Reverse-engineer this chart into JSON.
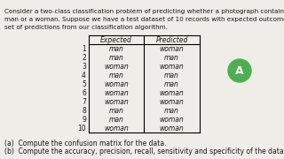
{
  "title_line1": "Consider a two-class classification problem of predicting whether a photograph contains",
  "title_line2": "man or a woman. Suppose we have a test dataset of 10 records with expected outcomes and",
  "title_line3": "set of predictions from our classification algorithm.",
  "col_headers": [
    "",
    "Expected",
    "Predicted"
  ],
  "rows": [
    [
      "1",
      "man",
      "woman"
    ],
    [
      "2",
      "man",
      "man"
    ],
    [
      "3",
      "woman",
      "woman"
    ],
    [
      "4",
      "man",
      "man"
    ],
    [
      "5",
      "woman",
      "man"
    ],
    [
      "6",
      "woman",
      "woman"
    ],
    [
      "7",
      "woman",
      "woman"
    ],
    [
      "8",
      "man",
      "man"
    ],
    [
      "9",
      "man",
      "woman"
    ],
    [
      "10",
      "woman",
      "woman"
    ]
  ],
  "footnote_a": "(a)  Compute the confusion matrix for the data.",
  "footnote_b": "(b)  Compute the accuracy, precision, recall, sensitivity and specificity of the data.",
  "circle_label": "A",
  "circle_color": "#4caf50",
  "bg_color": "#f0ece8",
  "text_color": "#1a1a1a",
  "font_size": 5.5,
  "table_font_size": 5.5
}
